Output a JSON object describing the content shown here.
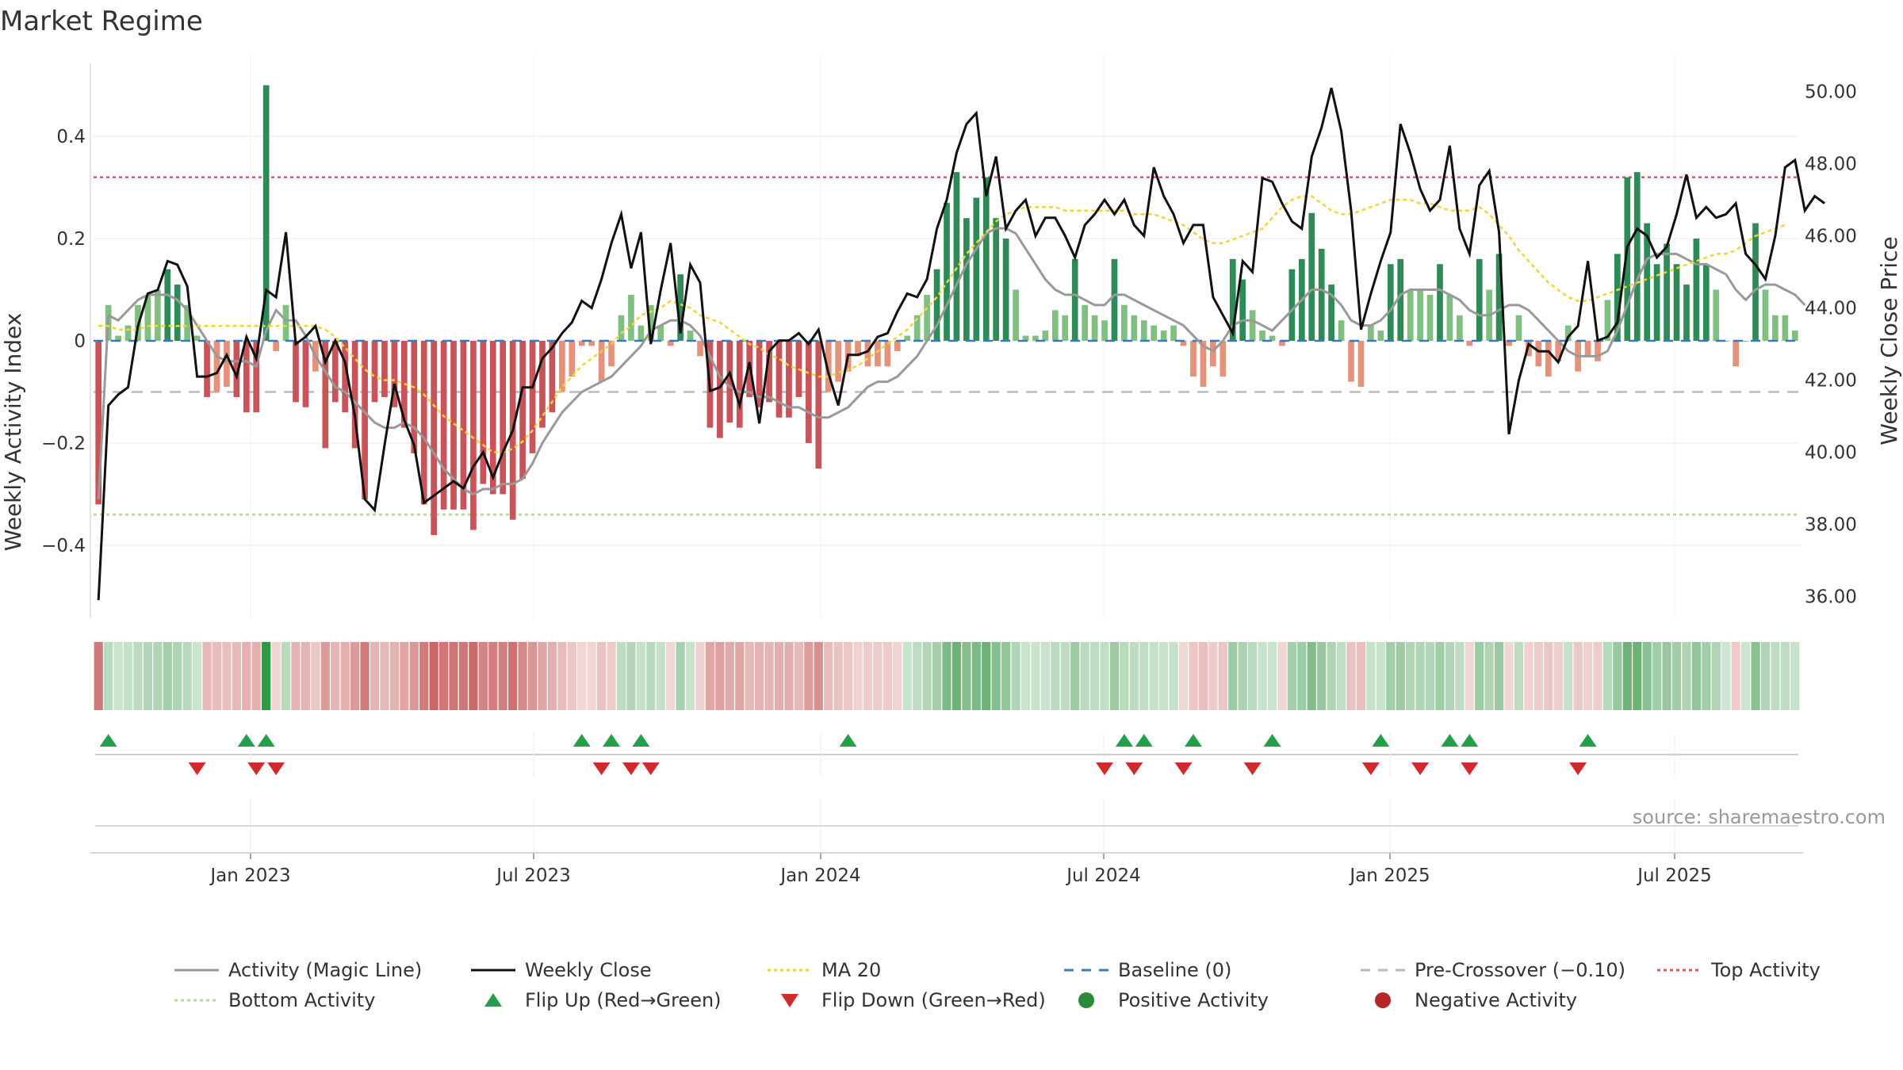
{
  "title": "Market Regime",
  "source": "source: sharemaestro.com",
  "chart_data": {
    "type": "bar",
    "title": "Market Regime",
    "x_ticks": [
      "Jan 2023",
      "Jul 2023",
      "Jan 2024",
      "Jul 2024",
      "Jan 2025",
      "Jul 2025"
    ],
    "y_left": {
      "label": "Weekly Activity Index",
      "ticks": [
        "0.4",
        "0.2",
        "0",
        "−0.2",
        "−0.4"
      ],
      "range": [
        -0.54,
        0.54
      ]
    },
    "y_right": {
      "label": "Weekly Close Price",
      "ticks": [
        "50.00",
        "48.00",
        "46.00",
        "44.00",
        "42.00",
        "40.00",
        "38.00",
        "36.00"
      ],
      "range": [
        35.4,
        51.0
      ]
    },
    "levels": {
      "top_activity": 0.32,
      "bottom_activity": -0.34,
      "pre_crossover": -0.1,
      "baseline": 0
    },
    "activity": [
      -0.32,
      0.07,
      0.01,
      0.03,
      0.07,
      0.09,
      0.1,
      0.14,
      0.11,
      0.07,
      0.01,
      -0.11,
      -0.1,
      -0.09,
      -0.11,
      -0.14,
      -0.14,
      0.5,
      -0.02,
      0.07,
      -0.12,
      -0.13,
      -0.06,
      -0.21,
      -0.12,
      -0.14,
      -0.21,
      -0.31,
      -0.12,
      -0.11,
      -0.13,
      -0.17,
      -0.22,
      -0.32,
      -0.38,
      -0.33,
      -0.33,
      -0.33,
      -0.37,
      -0.28,
      -0.3,
      -0.3,
      -0.35,
      -0.27,
      -0.22,
      -0.17,
      -0.14,
      -0.1,
      -0.07,
      -0.01,
      -0.01,
      -0.08,
      -0.05,
      0.05,
      0.09,
      0.03,
      0.07,
      0.03,
      -0.01,
      0.13,
      0.02,
      -0.03,
      -0.17,
      -0.19,
      -0.16,
      -0.17,
      -0.11,
      -0.13,
      -0.12,
      -0.15,
      -0.15,
      -0.11,
      -0.2,
      -0.25,
      -0.1,
      -0.08,
      -0.06,
      -0.03,
      -0.05,
      -0.05,
      -0.05,
      -0.02,
      0.01,
      0.05,
      0.09,
      0.14,
      0.27,
      0.33,
      0.24,
      0.28,
      0.32,
      0.24,
      0.2,
      0.1,
      0.01,
      0.01,
      0.02,
      0.06,
      0.05,
      0.16,
      0.07,
      0.05,
      0.04,
      0.16,
      0.07,
      0.05,
      0.04,
      0.03,
      0.02,
      0.03,
      -0.01,
      -0.07,
      -0.09,
      -0.05,
      -0.07,
      0.16,
      0.12,
      0.06,
      0.02,
      0.01,
      -0.01,
      0.14,
      0.16,
      0.25,
      0.18,
      0.11,
      0.04,
      -0.08,
      -0.09,
      0.03,
      0.02,
      0.15,
      0.16,
      0.1,
      0.1,
      0.09,
      0.15,
      0.09,
      0.05,
      -0.01,
      0.16,
      0.1,
      0.17,
      -0.01,
      0.05,
      -0.03,
      -0.05,
      -0.07,
      -0.04,
      0.03,
      -0.06,
      -0.03,
      -0.04,
      0.08,
      0.17,
      0.32,
      0.33,
      0.23,
      0.15,
      0.19,
      0.15,
      0.11,
      0.2,
      0.15,
      0.1,
      0.0,
      -0.05,
      0.0,
      0.23,
      0.1,
      0.05,
      0.05,
      0.02
    ],
    "series": [
      {
        "name": "Activity (Magic Line)",
        "values": [
          -0.31,
          0.05,
          0.04,
          0.06,
          0.08,
          0.09,
          0.09,
          0.09,
          0.08,
          0.06,
          0.03,
          0.0,
          -0.03,
          -0.04,
          -0.04,
          -0.04,
          -0.05,
          0.02,
          0.06,
          0.04,
          0.04,
          0.01,
          -0.03,
          -0.06,
          -0.09,
          -0.1,
          -0.12,
          -0.14,
          -0.16,
          -0.17,
          -0.17,
          -0.16,
          -0.17,
          -0.19,
          -0.22,
          -0.25,
          -0.27,
          -0.29,
          -0.3,
          -0.29,
          -0.29,
          -0.28,
          -0.28,
          -0.27,
          -0.24,
          -0.2,
          -0.17,
          -0.14,
          -0.12,
          -0.1,
          -0.09,
          -0.08,
          -0.07,
          -0.05,
          -0.03,
          -0.01,
          0.02,
          0.03,
          0.04,
          0.04,
          0.03,
          0.01,
          -0.03,
          -0.07,
          -0.09,
          -0.1,
          -0.1,
          -0.11,
          -0.11,
          -0.12,
          -0.13,
          -0.13,
          -0.14,
          -0.15,
          -0.15,
          -0.14,
          -0.13,
          -0.11,
          -0.09,
          -0.08,
          -0.08,
          -0.07,
          -0.05,
          -0.03,
          0.0,
          0.03,
          0.07,
          0.11,
          0.15,
          0.18,
          0.21,
          0.22,
          0.22,
          0.21,
          0.18,
          0.15,
          0.12,
          0.1,
          0.09,
          0.09,
          0.08,
          0.07,
          0.07,
          0.09,
          0.09,
          0.08,
          0.07,
          0.06,
          0.05,
          0.04,
          0.03,
          0.01,
          -0.01,
          -0.02,
          0.0,
          0.03,
          0.04,
          0.04,
          0.03,
          0.02,
          0.04,
          0.06,
          0.08,
          0.1,
          0.1,
          0.09,
          0.07,
          0.04,
          0.03,
          0.03,
          0.04,
          0.06,
          0.09,
          0.1,
          0.1,
          0.1,
          0.1,
          0.09,
          0.08,
          0.06,
          0.05,
          0.05,
          0.06,
          0.07,
          0.07,
          0.06,
          0.04,
          0.02,
          0.0,
          -0.02,
          -0.03,
          -0.03,
          -0.03,
          -0.02,
          0.02,
          0.07,
          0.12,
          0.16,
          0.17,
          0.17,
          0.17,
          0.16,
          0.15,
          0.15,
          0.14,
          0.13,
          0.1,
          0.08,
          0.1,
          0.11,
          0.11,
          0.1,
          0.09,
          0.07
        ]
      },
      {
        "name": "Weekly Close",
        "values": [
          35.9,
          41.3,
          41.6,
          41.8,
          43.5,
          44.4,
          44.5,
          45.3,
          45.2,
          44.6,
          42.1,
          42.1,
          42.2,
          42.7,
          42.1,
          43.2,
          42.6,
          44.5,
          44.3,
          46.1,
          43.0,
          43.2,
          43.5,
          42.5,
          43.1,
          42.5,
          41.0,
          38.7,
          38.4,
          40.2,
          41.9,
          40.9,
          40.2,
          38.6,
          38.8,
          39.0,
          39.2,
          39.0,
          39.6,
          40.0,
          39.3,
          40.0,
          40.6,
          41.8,
          41.8,
          42.6,
          42.9,
          43.3,
          43.6,
          44.2,
          44.0,
          44.8,
          45.8,
          46.6,
          45.1,
          46.1,
          43.0,
          44.5,
          45.8,
          43.3,
          45.2,
          44.7,
          41.7,
          41.8,
          42.2,
          41.3,
          42.5,
          40.8,
          42.8,
          43.1,
          43.1,
          43.3,
          43.0,
          43.4,
          42.2,
          41.3,
          42.7,
          42.7,
          42.8,
          43.2,
          43.3,
          43.9,
          44.4,
          44.3,
          44.8,
          46.2,
          47.0,
          48.3,
          49.1,
          49.4,
          47.1,
          48.2,
          46.2,
          46.7,
          47.0,
          46.0,
          46.5,
          46.5,
          46.0,
          45.4,
          46.3,
          46.6,
          47.0,
          46.6,
          47.0,
          46.3,
          46.0,
          47.9,
          47.1,
          46.6,
          45.8,
          46.3,
          46.3,
          44.3,
          43.8,
          43.3,
          45.3,
          45.0,
          47.6,
          47.5,
          46.9,
          46.4,
          46.2,
          48.2,
          49.0,
          50.1,
          48.9,
          46.7,
          43.4,
          44.4,
          45.3,
          46.1,
          49.1,
          48.3,
          47.3,
          46.7,
          47.0,
          48.5,
          46.2,
          45.5,
          47.4,
          47.8,
          46.1,
          40.5,
          42.0,
          43.0,
          42.8,
          42.8,
          42.5,
          43.2,
          43.5,
          45.3,
          43.1,
          43.2,
          43.6,
          45.7,
          46.2,
          46.0,
          45.4,
          45.7,
          46.6,
          47.7,
          46.5,
          46.8,
          46.5,
          46.6,
          46.9,
          45.5,
          45.2,
          44.8,
          46.0,
          47.9,
          48.1,
          46.7,
          47.1,
          46.9
        ]
      },
      {
        "name": "MA 20",
        "values": [
          43.5,
          43.5,
          43.4,
          43.4,
          43.4,
          43.5,
          43.5,
          43.5,
          43.5,
          43.5,
          43.5,
          43.5,
          43.5,
          43.5,
          43.5,
          43.5,
          43.5,
          43.5,
          43.5,
          43.5,
          43.5,
          43.5,
          43.5,
          43.4,
          43.2,
          42.9,
          42.6,
          42.3,
          42.1,
          42.0,
          42.0,
          41.9,
          41.8,
          41.6,
          41.3,
          41.0,
          40.8,
          40.6,
          40.4,
          40.2,
          40.0,
          40.0,
          40.1,
          40.3,
          40.6,
          41.0,
          41.4,
          41.8,
          42.1,
          42.4,
          42.6,
          42.8,
          43.0,
          43.3,
          43.5,
          43.8,
          43.9,
          44.0,
          44.2,
          44.1,
          44.0,
          43.8,
          43.7,
          43.6,
          43.4,
          43.2,
          43.0,
          42.9,
          42.7,
          42.6,
          42.4,
          42.3,
          42.2,
          42.1,
          42.1,
          42.2,
          42.3,
          42.4,
          42.6,
          42.8,
          43.0,
          43.2,
          43.4,
          43.7,
          44.0,
          44.3,
          44.7,
          45.1,
          45.5,
          45.8,
          46.1,
          46.4,
          46.6,
          46.7,
          46.8,
          46.8,
          46.8,
          46.8,
          46.7,
          46.7,
          46.7,
          46.7,
          46.7,
          46.7,
          46.7,
          46.6,
          46.6,
          46.6,
          46.5,
          46.4,
          46.3,
          46.1,
          45.9,
          45.8,
          45.8,
          45.9,
          46.0,
          46.1,
          46.2,
          46.5,
          46.8,
          47.0,
          47.1,
          47.1,
          46.9,
          46.7,
          46.6,
          46.6,
          46.7,
          46.8,
          46.9,
          47.0,
          47.0,
          47.0,
          46.9,
          46.9,
          46.8,
          46.7,
          46.7,
          46.7,
          46.8,
          46.6,
          46.3,
          46.0,
          45.6,
          45.3,
          45.0,
          44.7,
          44.5,
          44.3,
          44.2,
          44.2,
          44.3,
          44.4,
          44.5,
          44.6,
          44.7,
          44.8,
          44.9,
          45.0,
          45.1,
          45.2,
          45.3,
          45.4,
          45.5,
          45.5,
          45.6,
          45.8,
          46.0,
          46.1,
          46.2,
          46.3
        ]
      }
    ],
    "flip_up": [
      1,
      15,
      17,
      49,
      52,
      55,
      76,
      104,
      106,
      111,
      119,
      130,
      137,
      139,
      151
    ],
    "flip_down": [
      10,
      16,
      18,
      51,
      54,
      56,
      102,
      105,
      110,
      117,
      129,
      134,
      139,
      150
    ],
    "colors": {
      "strong_green": "#2e8b57",
      "light_green": "#7fc080",
      "strong_red": "#c8545a",
      "light_red": "#e5927a",
      "magic_line": "#999999",
      "close": "#111111",
      "ma": "#f2d535",
      "baseline": "#3a7ab8",
      "pre_crossover": "#bbbbbb",
      "top": "#e05565",
      "bottom": "#b5dc8a",
      "flip_up": "#22a04b",
      "flip_down": "#d22a2a",
      "positive": "#2a8a3a",
      "negative": "#b52626"
    },
    "legend": [
      {
        "label": "Activity (Magic Line)",
        "kind": "line",
        "color": "#999999",
        "dash": ""
      },
      {
        "label": "Weekly Close",
        "kind": "line",
        "color": "#111111",
        "dash": ""
      },
      {
        "label": "MA 20",
        "kind": "line",
        "color": "#f2d535",
        "dash": "4,4"
      },
      {
        "label": "Baseline (0)",
        "kind": "line",
        "color": "#3a7ab8",
        "dash": "12,10"
      },
      {
        "label": "Pre-Crossover (−0.10)",
        "kind": "line",
        "color": "#bbbbbb",
        "dash": "12,10"
      },
      {
        "label": "Top Activity",
        "kind": "line",
        "color": "#e05565",
        "dash": "4,4"
      },
      {
        "label": "Bottom Activity",
        "kind": "line",
        "color": "#b5dc8a",
        "dash": "4,4"
      },
      {
        "label": "Flip Up (Red→Green)",
        "kind": "tri-up",
        "color": "#22a04b"
      },
      {
        "label": "Flip Down (Green→Red)",
        "kind": "tri-down",
        "color": "#d22a2a"
      },
      {
        "label": "Positive Activity",
        "kind": "dot",
        "color": "#2a8a3a"
      },
      {
        "label": "Negative Activity",
        "kind": "dot",
        "color": "#b52626"
      }
    ]
  }
}
